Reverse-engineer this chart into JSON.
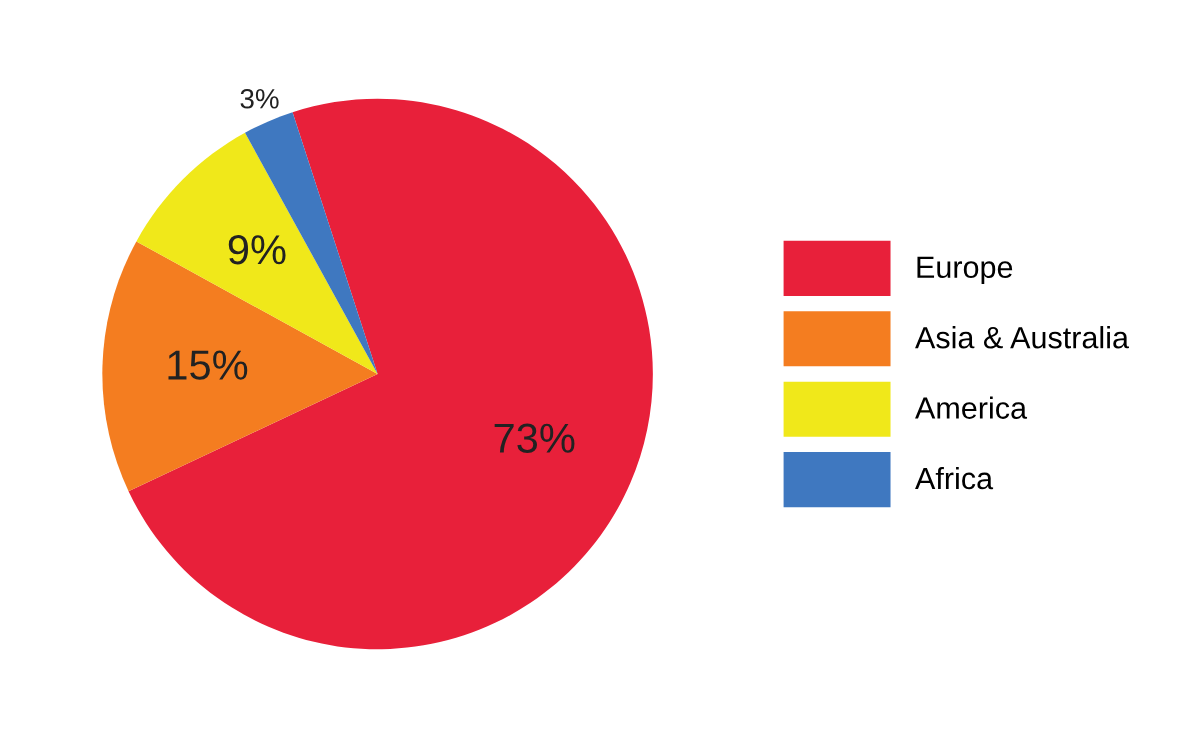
{
  "chart_data": {
    "type": "pie",
    "categories": [
      "Europe",
      "Asia & Australia",
      "America",
      "Africa"
    ],
    "values": [
      73,
      15,
      9,
      3
    ],
    "colors": [
      "#e8203a",
      "#f47d20",
      "#f0e81a",
      "#3f78c0"
    ],
    "value_labels": [
      "73%",
      "15%",
      "9%",
      "3%"
    ],
    "legend": "right"
  }
}
